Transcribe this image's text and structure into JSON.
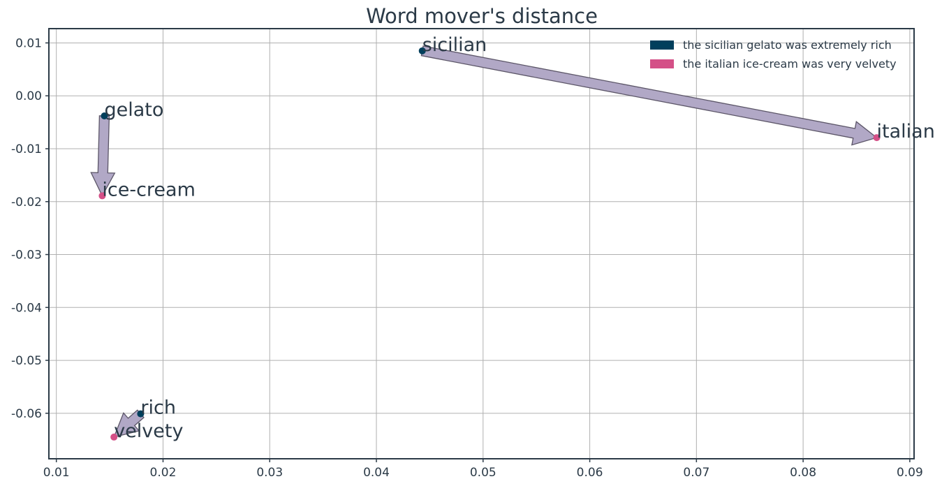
{
  "chart_data": {
    "type": "scatter",
    "title": "Word mover's distance",
    "xlabel": "",
    "ylabel": "",
    "xlim": [
      0.0093,
      0.0904
    ],
    "ylim": [
      -0.0686,
      0.0127
    ],
    "x_ticks": [
      0.01,
      0.02,
      0.03,
      0.04,
      0.05,
      0.06,
      0.07,
      0.08,
      0.09
    ],
    "x_tick_labels": [
      "0.01",
      "0.02",
      "0.03",
      "0.04",
      "0.05",
      "0.06",
      "0.07",
      "0.08",
      "0.09"
    ],
    "y_ticks": [
      0.01,
      0.0,
      -0.01,
      -0.02,
      -0.03,
      -0.04,
      -0.05,
      -0.06
    ],
    "y_tick_labels": [
      "0.01",
      "0.00",
      "-0.01",
      "-0.02",
      "-0.03",
      "-0.04",
      "-0.05",
      "-0.06"
    ],
    "grid": true,
    "legend_position": "top-right",
    "series": [
      {
        "name": "the sicilian gelato was extremely rich",
        "color": "#003f5c",
        "points": [
          {
            "label": "sicilian",
            "x": 0.0443,
            "y": 0.0085
          },
          {
            "label": "gelato",
            "x": 0.0145,
            "y": -0.0038
          },
          {
            "label": "rich",
            "x": 0.0179,
            "y": -0.0601
          }
        ]
      },
      {
        "name": "the italian ice-cream was very velvety",
        "color": "#d45087",
        "points": [
          {
            "label": "italian",
            "x": 0.0869,
            "y": -0.0079
          },
          {
            "label": "ice-cream",
            "x": 0.0143,
            "y": -0.0189
          },
          {
            "label": "velvety",
            "x": 0.0154,
            "y": -0.0645
          }
        ]
      }
    ],
    "arrows": [
      {
        "from": "sicilian",
        "to": "italian",
        "x0": 0.0443,
        "y0": 0.0085,
        "x1": 0.0869,
        "y1": -0.0079
      },
      {
        "from": "gelato",
        "to": "ice-cream",
        "x0": 0.0145,
        "y0": -0.0038,
        "x1": 0.0143,
        "y1": -0.0189
      },
      {
        "from": "rich",
        "to": "velvety",
        "x0": 0.0179,
        "y0": -0.0601,
        "x1": 0.0154,
        "y1": -0.0645
      }
    ],
    "arrow_fill": "#b1a8c6",
    "arrow_stroke": "#5c5668"
  }
}
